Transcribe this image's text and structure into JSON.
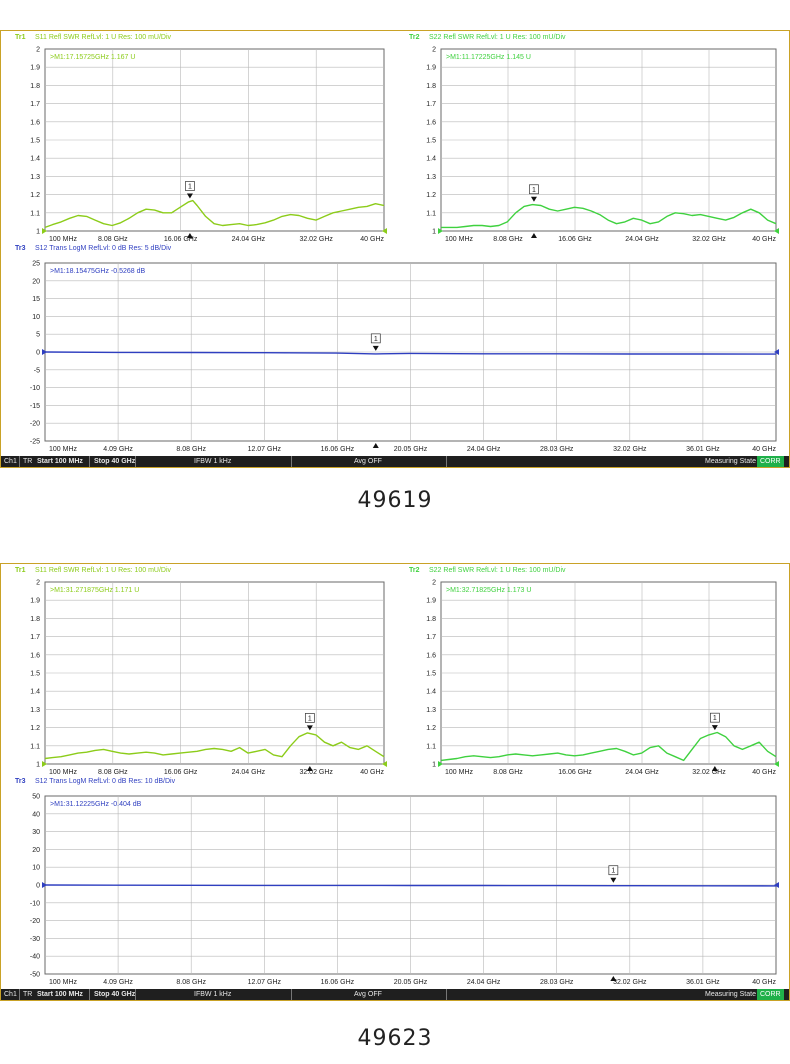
{
  "samples": [
    {
      "label": "49619",
      "status": {
        "ch": "Ch1",
        "tr": "TR",
        "start": "Start 100 MHz",
        "stop": "Stop 40 GHz",
        "ifbw": "IFBW 1 kHz",
        "avg": "Avg OFF",
        "state": "Measuring State",
        "corr": "CORR"
      }
    },
    {
      "label": "49623",
      "status": {
        "ch": "Ch1",
        "tr": "TR",
        "start": "Start 100 MHz",
        "stop": "Stop 40 GHz",
        "ifbw": "IFBW 1 kHz",
        "avg": "Avg OFF",
        "state": "Measuring State",
        "corr": "CORR"
      }
    }
  ],
  "chart_data": [
    {
      "type": "line",
      "sample": "49619",
      "trace": "Tr1",
      "title": "S11 Refl SWR RefLvl: 1  U Res: 100 mU/Div",
      "marker_readout": ">M1:17.15725GHz  1.167  U",
      "marker_x": 17.157,
      "marker_label": "1",
      "ylim": [
        1,
        2
      ],
      "yticks": [
        "2",
        "1.9",
        "1.8",
        "1.7",
        "1.6",
        "1.5",
        "1.4",
        "1.3",
        "1.2",
        "1.1",
        "1"
      ],
      "xticks": [
        "100 MHz",
        "8.08 GHz",
        "16.06 GHz",
        "24.04 GHz",
        "32.02 GHz",
        "40 GHz"
      ],
      "xlim": [
        0.1,
        40
      ],
      "color": "#8ccc1a",
      "grid": true,
      "x": [
        0.1,
        1,
        2,
        3,
        4,
        5,
        6,
        7,
        8,
        9,
        10,
        11,
        12,
        13,
        14,
        15,
        16,
        17,
        17.5,
        18,
        19,
        20,
        21,
        22,
        23,
        24,
        25,
        26,
        27,
        28,
        29,
        30,
        31,
        32,
        33,
        34,
        35,
        36,
        37,
        38,
        39,
        40
      ],
      "y": [
        1.02,
        1.035,
        1.05,
        1.07,
        1.085,
        1.08,
        1.06,
        1.04,
        1.03,
        1.045,
        1.07,
        1.1,
        1.12,
        1.115,
        1.1,
        1.1,
        1.13,
        1.16,
        1.167,
        1.14,
        1.08,
        1.04,
        1.03,
        1.035,
        1.04,
        1.03,
        1.035,
        1.045,
        1.06,
        1.08,
        1.09,
        1.085,
        1.07,
        1.06,
        1.08,
        1.1,
        1.11,
        1.12,
        1.13,
        1.135,
        1.15,
        1.14
      ]
    },
    {
      "type": "line",
      "sample": "49619",
      "trace": "Tr2",
      "title": "S22 Refl SWR RefLvl: 1  U Res: 100 mU/Div",
      "marker_readout": ">M1:11.17225GHz  1.145  U",
      "marker_x": 11.172,
      "marker_label": "1",
      "ylim": [
        1,
        2
      ],
      "yticks": [
        "2",
        "1.9",
        "1.8",
        "1.7",
        "1.6",
        "1.5",
        "1.4",
        "1.3",
        "1.2",
        "1.1",
        "1"
      ],
      "xticks": [
        "100 MHz",
        "8.08 GHz",
        "16.06 GHz",
        "24.04 GHz",
        "32.02 GHz",
        "40 GHz"
      ],
      "xlim": [
        0.1,
        40
      ],
      "color": "#3fd13f",
      "grid": true,
      "x": [
        0.1,
        1,
        2,
        3,
        4,
        5,
        6,
        7,
        8,
        9,
        10,
        11,
        12,
        13,
        14,
        15,
        16,
        17,
        18,
        19,
        20,
        21,
        22,
        23,
        24,
        25,
        26,
        27,
        28,
        29,
        30,
        31,
        32,
        33,
        34,
        35,
        36,
        37,
        38,
        39,
        40
      ],
      "y": [
        1.02,
        1.02,
        1.02,
        1.025,
        1.03,
        1.03,
        1.025,
        1.03,
        1.05,
        1.1,
        1.135,
        1.145,
        1.14,
        1.12,
        1.11,
        1.12,
        1.13,
        1.125,
        1.11,
        1.09,
        1.06,
        1.04,
        1.05,
        1.07,
        1.06,
        1.04,
        1.05,
        1.08,
        1.1,
        1.095,
        1.085,
        1.09,
        1.08,
        1.07,
        1.06,
        1.075,
        1.1,
        1.12,
        1.1,
        1.06,
        1.04
      ]
    },
    {
      "type": "line",
      "sample": "49619",
      "trace": "Tr3",
      "title": "S12 Trans LogM RefLvl: 0  dB Res: 5  dB/Div",
      "marker_readout": ">M1:18.15475GHz  -0.5268  dB",
      "marker_x": 18.155,
      "marker_label": "1",
      "ylim": [
        -25,
        25
      ],
      "yticks": [
        "25",
        "20",
        "15",
        "10",
        "5",
        "0",
        "-5",
        "-10",
        "-15",
        "-20",
        "-25"
      ],
      "xticks": [
        "100 MHz",
        "4.09 GHz",
        "8.08 GHz",
        "12.07 GHz",
        "16.06 GHz",
        "20.05 GHz",
        "24.04 GHz",
        "28.03 GHz",
        "32.02 GHz",
        "36.01 GHz",
        "40 GHz"
      ],
      "xlim": [
        0.1,
        40
      ],
      "color": "#2f3fc0",
      "grid": true,
      "x": [
        0.1,
        4,
        8,
        12,
        16,
        18.15,
        20,
        24,
        28,
        32,
        36,
        40
      ],
      "y": [
        0,
        -0.1,
        -0.15,
        -0.2,
        -0.3,
        -0.5268,
        -0.4,
        -0.5,
        -0.5,
        -0.55,
        -0.55,
        -0.6
      ]
    },
    {
      "type": "line",
      "sample": "49623",
      "trace": "Tr1",
      "title": "S11 Refl SWR RefLvl: 1  U Res: 100 mU/Div",
      "marker_readout": ">M1:31.271875GHz  1.171  U",
      "marker_x": 31.272,
      "marker_label": "1",
      "ylim": [
        1,
        2
      ],
      "yticks": [
        "2",
        "1.9",
        "1.8",
        "1.7",
        "1.6",
        "1.5",
        "1.4",
        "1.3",
        "1.2",
        "1.1",
        "1"
      ],
      "xticks": [
        "100 MHz",
        "8.08 GHz",
        "16.06 GHz",
        "24.04 GHz",
        "32.02 GHz",
        "40 GHz"
      ],
      "xlim": [
        0.1,
        40
      ],
      "color": "#8ccc1a",
      "grid": true,
      "x": [
        0.1,
        1,
        2,
        3,
        4,
        5,
        6,
        7,
        8,
        9,
        10,
        11,
        12,
        13,
        14,
        15,
        16,
        17,
        18,
        19,
        20,
        21,
        22,
        23,
        24,
        25,
        26,
        27,
        28,
        29,
        30,
        31,
        32,
        33,
        34,
        35,
        36,
        37,
        38,
        39,
        40
      ],
      "y": [
        1.03,
        1.035,
        1.04,
        1.05,
        1.06,
        1.065,
        1.075,
        1.08,
        1.07,
        1.06,
        1.055,
        1.06,
        1.065,
        1.06,
        1.05,
        1.055,
        1.06,
        1.065,
        1.07,
        1.08,
        1.085,
        1.08,
        1.07,
        1.09,
        1.06,
        1.07,
        1.08,
        1.05,
        1.04,
        1.1,
        1.15,
        1.171,
        1.16,
        1.12,
        1.1,
        1.12,
        1.09,
        1.08,
        1.1,
        1.07,
        1.04
      ]
    },
    {
      "type": "line",
      "sample": "49623",
      "trace": "Tr2",
      "title": "S22 Refl SWR RefLvl: 1  U Res: 100 mU/Div",
      "marker_readout": ">M1:32.71825GHz  1.173  U",
      "marker_x": 32.718,
      "marker_label": "1",
      "ylim": [
        1,
        2
      ],
      "yticks": [
        "2",
        "1.9",
        "1.8",
        "1.7",
        "1.6",
        "1.5",
        "1.4",
        "1.3",
        "1.2",
        "1.1",
        "1"
      ],
      "xticks": [
        "100 MHz",
        "8.08 GHz",
        "16.06 GHz",
        "24.04 GHz",
        "32.02 GHz",
        "40 GHz"
      ],
      "xlim": [
        0.1,
        40
      ],
      "color": "#3fd13f",
      "grid": true,
      "x": [
        0.1,
        1,
        2,
        3,
        4,
        5,
        6,
        7,
        8,
        9,
        10,
        11,
        12,
        13,
        14,
        15,
        16,
        17,
        18,
        19,
        20,
        21,
        22,
        23,
        24,
        25,
        26,
        27,
        28,
        29,
        30,
        31,
        32,
        33,
        34,
        35,
        36,
        37,
        38,
        39,
        40
      ],
      "y": [
        1.02,
        1.025,
        1.03,
        1.04,
        1.045,
        1.04,
        1.035,
        1.04,
        1.05,
        1.055,
        1.05,
        1.045,
        1.05,
        1.055,
        1.06,
        1.05,
        1.045,
        1.05,
        1.06,
        1.07,
        1.08,
        1.085,
        1.07,
        1.05,
        1.06,
        1.09,
        1.1,
        1.06,
        1.04,
        1.02,
        1.08,
        1.14,
        1.16,
        1.173,
        1.15,
        1.1,
        1.08,
        1.1,
        1.12,
        1.07,
        1.04
      ]
    },
    {
      "type": "line",
      "sample": "49623",
      "trace": "Tr3",
      "title": "S12 Trans LogM RefLvl: 0  dB Res: 10  dB/Div",
      "marker_readout": ">M1:31.12225GHz  -0.404  dB",
      "marker_x": 31.122,
      "marker_label": "1",
      "ylim": [
        -50,
        50
      ],
      "yticks": [
        "50",
        "40",
        "30",
        "20",
        "10",
        "0",
        "-10",
        "-20",
        "-30",
        "-40",
        "-50"
      ],
      "xticks": [
        "100 MHz",
        "4.09 GHz",
        "8.08 GHz",
        "12.07 GHz",
        "16.06 GHz",
        "20.05 GHz",
        "24.04 GHz",
        "28.03 GHz",
        "32.02 GHz",
        "36.01 GHz",
        "40 GHz"
      ],
      "xlim": [
        0.1,
        40
      ],
      "color": "#2f3fc0",
      "grid": true,
      "x": [
        0.1,
        4,
        8,
        12,
        16,
        20,
        24,
        28,
        31.12,
        32,
        36,
        40
      ],
      "y": [
        0,
        -0.1,
        -0.15,
        -0.2,
        -0.25,
        -0.3,
        -0.3,
        -0.35,
        -0.404,
        -0.4,
        -0.45,
        -0.5
      ]
    }
  ]
}
